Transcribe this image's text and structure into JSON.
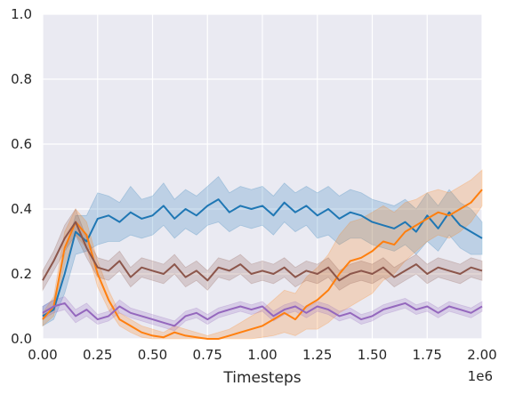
{
  "chart_data": {
    "type": "line",
    "title": "",
    "xlabel": "Timesteps",
    "ylabel": "",
    "x_offset_text": "1e6",
    "xlim": [
      0,
      2.0
    ],
    "ylim": [
      0,
      1.0
    ],
    "x_scale": 1000000,
    "xticks": [
      "0.00",
      "0.25",
      "0.50",
      "0.75",
      "1.00",
      "1.25",
      "1.50",
      "1.75",
      "2.00"
    ],
    "yticks": [
      "0.0",
      "0.2",
      "0.4",
      "0.6",
      "0.8",
      "1.0"
    ],
    "grid": true,
    "legend": "none",
    "background": "#eaeaf2",
    "series": [
      {
        "color": "#1f77b4",
        "x": [
          0.0,
          0.05,
          0.1,
          0.15,
          0.2,
          0.25,
          0.3,
          0.35,
          0.4,
          0.45,
          0.5,
          0.55,
          0.6,
          0.65,
          0.7,
          0.75,
          0.8,
          0.85,
          0.9,
          0.95,
          1.0,
          1.05,
          1.1,
          1.15,
          1.2,
          1.25,
          1.3,
          1.35,
          1.4,
          1.45,
          1.5,
          1.55,
          1.6,
          1.65,
          1.7,
          1.75,
          1.8,
          1.85,
          1.9,
          1.95,
          2.0
        ],
        "y": [
          0.07,
          0.09,
          0.2,
          0.33,
          0.3,
          0.37,
          0.38,
          0.36,
          0.39,
          0.37,
          0.38,
          0.41,
          0.37,
          0.4,
          0.38,
          0.41,
          0.43,
          0.39,
          0.41,
          0.4,
          0.41,
          0.38,
          0.42,
          0.39,
          0.41,
          0.38,
          0.4,
          0.37,
          0.39,
          0.38,
          0.36,
          0.35,
          0.34,
          0.36,
          0.33,
          0.38,
          0.34,
          0.39,
          0.35,
          0.33,
          0.31
        ],
        "lower": [
          0.04,
          0.06,
          0.14,
          0.26,
          0.27,
          0.29,
          0.3,
          0.3,
          0.32,
          0.31,
          0.32,
          0.35,
          0.31,
          0.34,
          0.32,
          0.35,
          0.36,
          0.33,
          0.35,
          0.34,
          0.35,
          0.32,
          0.36,
          0.33,
          0.35,
          0.31,
          0.32,
          0.29,
          0.31,
          0.31,
          0.29,
          0.28,
          0.27,
          0.29,
          0.26,
          0.3,
          0.27,
          0.32,
          0.28,
          0.26,
          0.26
        ],
        "upper": [
          0.1,
          0.12,
          0.26,
          0.38,
          0.38,
          0.45,
          0.44,
          0.42,
          0.47,
          0.43,
          0.44,
          0.48,
          0.43,
          0.46,
          0.44,
          0.47,
          0.5,
          0.45,
          0.47,
          0.46,
          0.47,
          0.44,
          0.48,
          0.45,
          0.47,
          0.45,
          0.47,
          0.44,
          0.46,
          0.45,
          0.43,
          0.42,
          0.41,
          0.43,
          0.4,
          0.45,
          0.41,
          0.46,
          0.42,
          0.4,
          0.36
        ]
      },
      {
        "color": "#ff7f0e",
        "x": [
          0.0,
          0.05,
          0.1,
          0.15,
          0.2,
          0.25,
          0.3,
          0.35,
          0.4,
          0.45,
          0.5,
          0.55,
          0.6,
          0.65,
          0.7,
          0.75,
          0.8,
          0.85,
          0.9,
          0.95,
          1.0,
          1.05,
          1.1,
          1.15,
          1.2,
          1.25,
          1.3,
          1.35,
          1.4,
          1.45,
          1.5,
          1.55,
          1.6,
          1.65,
          1.7,
          1.75,
          1.8,
          1.85,
          1.9,
          1.95,
          2.0
        ],
        "y": [
          0.06,
          0.1,
          0.28,
          0.36,
          0.32,
          0.2,
          0.12,
          0.06,
          0.04,
          0.02,
          0.01,
          0.005,
          0.02,
          0.01,
          0.005,
          0.0,
          0.0,
          0.01,
          0.02,
          0.03,
          0.04,
          0.06,
          0.08,
          0.06,
          0.1,
          0.12,
          0.15,
          0.2,
          0.24,
          0.25,
          0.27,
          0.3,
          0.29,
          0.33,
          0.35,
          0.37,
          0.39,
          0.38,
          0.4,
          0.42,
          0.46
        ],
        "lower": [
          0.04,
          0.07,
          0.23,
          0.32,
          0.28,
          0.16,
          0.09,
          0.04,
          0.02,
          0.005,
          0.0,
          0.0,
          0.0,
          0.0,
          0.0,
          0.0,
          0.0,
          0.0,
          0.0,
          0.0,
          0.005,
          0.01,
          0.02,
          0.01,
          0.03,
          0.03,
          0.05,
          0.08,
          0.1,
          0.12,
          0.14,
          0.18,
          0.2,
          0.24,
          0.27,
          0.3,
          0.32,
          0.31,
          0.33,
          0.36,
          0.41
        ],
        "upper": [
          0.08,
          0.13,
          0.33,
          0.4,
          0.36,
          0.24,
          0.15,
          0.08,
          0.06,
          0.04,
          0.03,
          0.02,
          0.04,
          0.03,
          0.02,
          0.01,
          0.02,
          0.03,
          0.05,
          0.07,
          0.09,
          0.12,
          0.15,
          0.14,
          0.19,
          0.22,
          0.26,
          0.32,
          0.36,
          0.37,
          0.39,
          0.41,
          0.39,
          0.42,
          0.43,
          0.45,
          0.46,
          0.45,
          0.47,
          0.49,
          0.52
        ]
      },
      {
        "color": "#8c564b",
        "x": [
          0.0,
          0.05,
          0.1,
          0.15,
          0.2,
          0.25,
          0.3,
          0.35,
          0.4,
          0.45,
          0.5,
          0.55,
          0.6,
          0.65,
          0.7,
          0.75,
          0.8,
          0.85,
          0.9,
          0.95,
          1.0,
          1.05,
          1.1,
          1.15,
          1.2,
          1.25,
          1.3,
          1.35,
          1.4,
          1.45,
          1.5,
          1.55,
          1.6,
          1.65,
          1.7,
          1.75,
          1.8,
          1.85,
          1.9,
          1.95,
          2.0
        ],
        "y": [
          0.18,
          0.24,
          0.31,
          0.36,
          0.28,
          0.22,
          0.21,
          0.24,
          0.19,
          0.22,
          0.21,
          0.2,
          0.23,
          0.19,
          0.21,
          0.18,
          0.22,
          0.21,
          0.23,
          0.2,
          0.21,
          0.2,
          0.22,
          0.19,
          0.21,
          0.2,
          0.22,
          0.18,
          0.2,
          0.21,
          0.2,
          0.22,
          0.19,
          0.21,
          0.23,
          0.2,
          0.22,
          0.21,
          0.2,
          0.22,
          0.21
        ],
        "lower": [
          0.15,
          0.21,
          0.27,
          0.32,
          0.25,
          0.19,
          0.18,
          0.21,
          0.16,
          0.19,
          0.18,
          0.17,
          0.2,
          0.16,
          0.18,
          0.15,
          0.19,
          0.18,
          0.2,
          0.17,
          0.18,
          0.17,
          0.19,
          0.16,
          0.18,
          0.17,
          0.19,
          0.15,
          0.17,
          0.18,
          0.17,
          0.19,
          0.16,
          0.18,
          0.2,
          0.17,
          0.19,
          0.18,
          0.17,
          0.19,
          0.18
        ],
        "upper": [
          0.21,
          0.27,
          0.35,
          0.4,
          0.31,
          0.25,
          0.24,
          0.27,
          0.22,
          0.25,
          0.24,
          0.23,
          0.26,
          0.22,
          0.24,
          0.21,
          0.25,
          0.24,
          0.26,
          0.23,
          0.24,
          0.23,
          0.25,
          0.22,
          0.24,
          0.23,
          0.25,
          0.21,
          0.23,
          0.24,
          0.23,
          0.25,
          0.22,
          0.24,
          0.26,
          0.23,
          0.25,
          0.24,
          0.23,
          0.25,
          0.24
        ]
      },
      {
        "color": "#9467bd",
        "x": [
          0.0,
          0.05,
          0.1,
          0.15,
          0.2,
          0.25,
          0.3,
          0.35,
          0.4,
          0.45,
          0.5,
          0.55,
          0.6,
          0.65,
          0.7,
          0.75,
          0.8,
          0.85,
          0.9,
          0.95,
          1.0,
          1.05,
          1.1,
          1.15,
          1.2,
          1.25,
          1.3,
          1.35,
          1.4,
          1.45,
          1.5,
          1.55,
          1.6,
          1.65,
          1.7,
          1.75,
          1.8,
          1.85,
          1.9,
          1.95,
          2.0
        ],
        "y": [
          0.08,
          0.1,
          0.11,
          0.07,
          0.09,
          0.06,
          0.07,
          0.1,
          0.08,
          0.07,
          0.06,
          0.05,
          0.04,
          0.07,
          0.08,
          0.06,
          0.08,
          0.09,
          0.1,
          0.09,
          0.1,
          0.07,
          0.09,
          0.1,
          0.08,
          0.1,
          0.09,
          0.07,
          0.08,
          0.06,
          0.07,
          0.09,
          0.1,
          0.11,
          0.09,
          0.1,
          0.08,
          0.1,
          0.09,
          0.08,
          0.1
        ],
        "lower": [
          0.06,
          0.08,
          0.09,
          0.05,
          0.07,
          0.045,
          0.055,
          0.08,
          0.065,
          0.055,
          0.045,
          0.035,
          0.025,
          0.055,
          0.065,
          0.045,
          0.065,
          0.075,
          0.085,
          0.075,
          0.085,
          0.055,
          0.075,
          0.085,
          0.065,
          0.085,
          0.075,
          0.055,
          0.065,
          0.045,
          0.055,
          0.075,
          0.085,
          0.095,
          0.075,
          0.085,
          0.065,
          0.085,
          0.075,
          0.065,
          0.085
        ],
        "upper": [
          0.1,
          0.12,
          0.13,
          0.09,
          0.11,
          0.075,
          0.085,
          0.12,
          0.095,
          0.085,
          0.075,
          0.065,
          0.055,
          0.085,
          0.095,
          0.075,
          0.095,
          0.105,
          0.115,
          0.105,
          0.115,
          0.085,
          0.105,
          0.115,
          0.095,
          0.115,
          0.105,
          0.085,
          0.095,
          0.075,
          0.085,
          0.105,
          0.115,
          0.125,
          0.105,
          0.115,
          0.095,
          0.115,
          0.105,
          0.095,
          0.115
        ]
      }
    ]
  }
}
